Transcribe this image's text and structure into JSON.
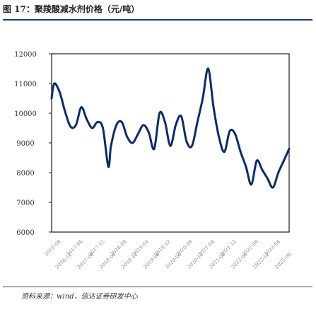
{
  "figure": {
    "title": "图 17：聚羧酸减水剂价格（元/吨）",
    "source": "资料来源：wind，信达证券研发中心"
  },
  "chart_data": {
    "type": "line",
    "title": "",
    "xlabel": "",
    "ylabel": "",
    "ylim": [
      6000,
      12000
    ],
    "yticks": [
      "6000",
      "7000",
      "8000",
      "9000",
      "10000",
      "11000",
      "12000"
    ],
    "xtick_labels": [
      "2016-08",
      "2016-12",
      "2017-04",
      "2017-08",
      "2017-12",
      "2018-04",
      "2018-08",
      "2018-12",
      "2019-04",
      "2019-08",
      "2019-12",
      "2020-04",
      "2020-08",
      "2020-12",
      "2021-04",
      "2021-08",
      "2021-12",
      "2022-04",
      "2022-08",
      "2022-12",
      "2023-04",
      "2023-08"
    ],
    "grid": false,
    "legend": "none",
    "line_color": "#0d2a6b",
    "series": [
      {
        "name": "",
        "x": [
          "2016-06",
          "2016-07",
          "2016-09",
          "2016-11",
          "2017-01",
          "2017-03",
          "2017-05",
          "2017-07",
          "2017-09",
          "2017-11",
          "2018-01",
          "2018-03",
          "2018-04",
          "2018-06",
          "2018-08",
          "2018-10",
          "2018-12",
          "2019-02",
          "2019-04",
          "2019-06",
          "2019-08",
          "2019-10",
          "2019-12",
          "2020-02",
          "2020-04",
          "2020-06",
          "2020-08",
          "2020-10",
          "2020-12",
          "2021-02",
          "2021-04",
          "2021-06",
          "2021-08",
          "2021-10",
          "2021-12",
          "2022-02",
          "2022-04",
          "2022-06",
          "2022-08",
          "2022-10",
          "2022-12",
          "2023-02",
          "2023-04",
          "2023-06",
          "2023-08",
          "2023-10"
        ],
        "values": [
          10500,
          11000,
          10700,
          10050,
          9550,
          9600,
          10200,
          9800,
          9500,
          9700,
          9500,
          8200,
          8900,
          9600,
          9700,
          9200,
          9000,
          9300,
          9600,
          9350,
          8800,
          10000,
          9700,
          8900,
          9600,
          9900,
          9050,
          8900,
          9700,
          10500,
          11500,
          10200,
          9200,
          8700,
          9400,
          9300,
          8700,
          8200,
          7600,
          8400,
          8100,
          7800,
          7500,
          8000,
          8400,
          8800
        ]
      }
    ]
  }
}
